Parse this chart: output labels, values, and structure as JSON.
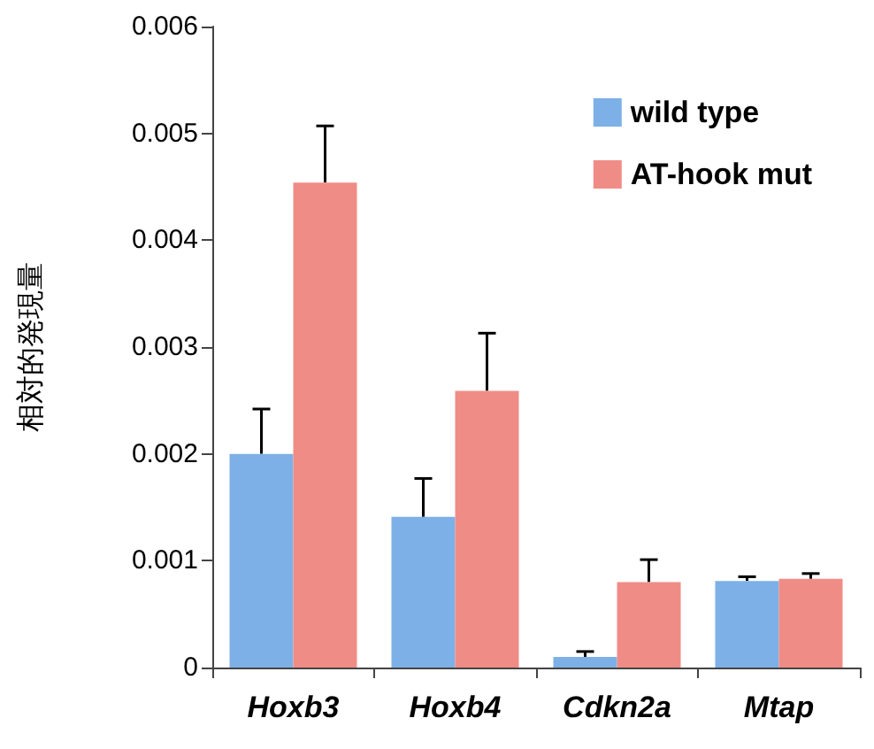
{
  "chart_data": {
    "type": "bar",
    "ylabel": "相対的発現量",
    "categories": [
      "Hoxb3",
      "Hoxb4",
      "Cdkn2a",
      "Mtap"
    ],
    "series": [
      {
        "name": "wild type",
        "color": "#7db0e6",
        "values": [
          0.002,
          0.00141,
          0.0001,
          0.00081
        ],
        "errors": [
          [
            0.002,
            0.00242
          ],
          [
            0.00141,
            0.00177
          ],
          [
            0.0001,
            0.00015
          ],
          [
            0.00081,
            0.00085
          ]
        ]
      },
      {
        "name": "AT-hook mut",
        "color": "#f08c86",
        "values": [
          0.00454,
          0.00259,
          0.0008,
          0.00083
        ],
        "errors": [
          [
            0.00454,
            0.00507
          ],
          [
            0.00259,
            0.00313
          ],
          [
            0.0008,
            0.00101
          ],
          [
            0.00083,
            0.00088
          ]
        ]
      }
    ],
    "ylim": [
      0,
      0.006
    ],
    "yticks": [
      0,
      0.001,
      0.002,
      0.003,
      0.004,
      0.005,
      0.006
    ],
    "legend": "top right",
    "grid": false
  }
}
